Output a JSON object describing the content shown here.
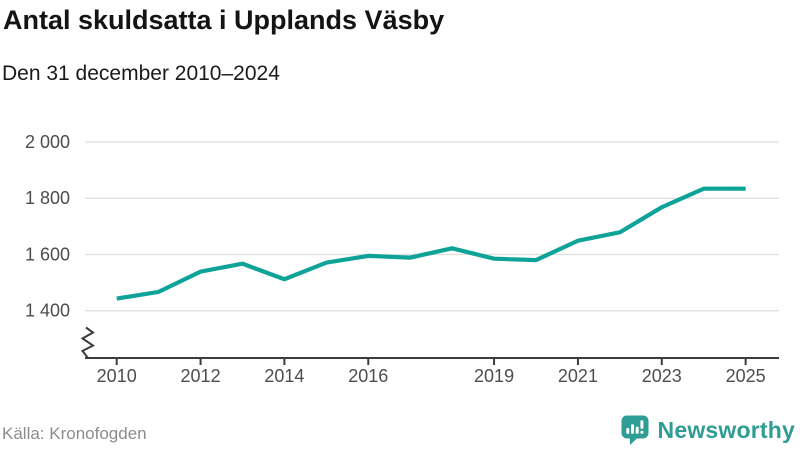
{
  "header": {
    "title": "Antal skuldsatta i Upplands Väsby",
    "subtitle": "Den 31 december 2010–2024"
  },
  "source": {
    "label": "Källa: Kronofogden"
  },
  "branding": {
    "wordmark": "Newsworthy",
    "logo_icon": "bar-chart-speech-bubble-icon",
    "brand_color": "#2F9D94"
  },
  "colors": {
    "line": "#0DA398",
    "gridline": "#DEDEDE",
    "axis": "#3C3C3C",
    "axis_label": "#4D4D4D",
    "title_text": "#141414",
    "source_text": "#8C8C8C"
  },
  "chart_data": {
    "type": "line",
    "title": "Antal skuldsatta i Upplands Väsby",
    "subtitle": "Den 31 december 2010–2024",
    "series_name": "Antal skuldsatta",
    "x": [
      2010,
      2011,
      2012,
      2013,
      2014,
      2015,
      2016,
      2017,
      2018,
      2019,
      2020,
      2021,
      2022,
      2023,
      2024
    ],
    "values": [
      1443,
      1467,
      1539,
      1567,
      1512,
      1571,
      1595,
      1589,
      1622,
      1585,
      1580,
      1649,
      1679,
      1768,
      1834
    ],
    "extend_flat_to_x": 2025,
    "x_ticks": [
      2010,
      2012,
      2014,
      2016,
      2019,
      2021,
      2023,
      2025
    ],
    "y_ticks": [
      {
        "value": 1400,
        "label": "1 400"
      },
      {
        "value": 1600,
        "label": "1 600"
      },
      {
        "value": 1800,
        "label": "1 800"
      },
      {
        "value": 2000,
        "label": "2 000"
      }
    ],
    "ylim": [
      1400,
      2000
    ],
    "xlim": [
      2010,
      2025
    ],
    "axis_break": true,
    "grid": "horizontal-only",
    "legend": "none"
  }
}
